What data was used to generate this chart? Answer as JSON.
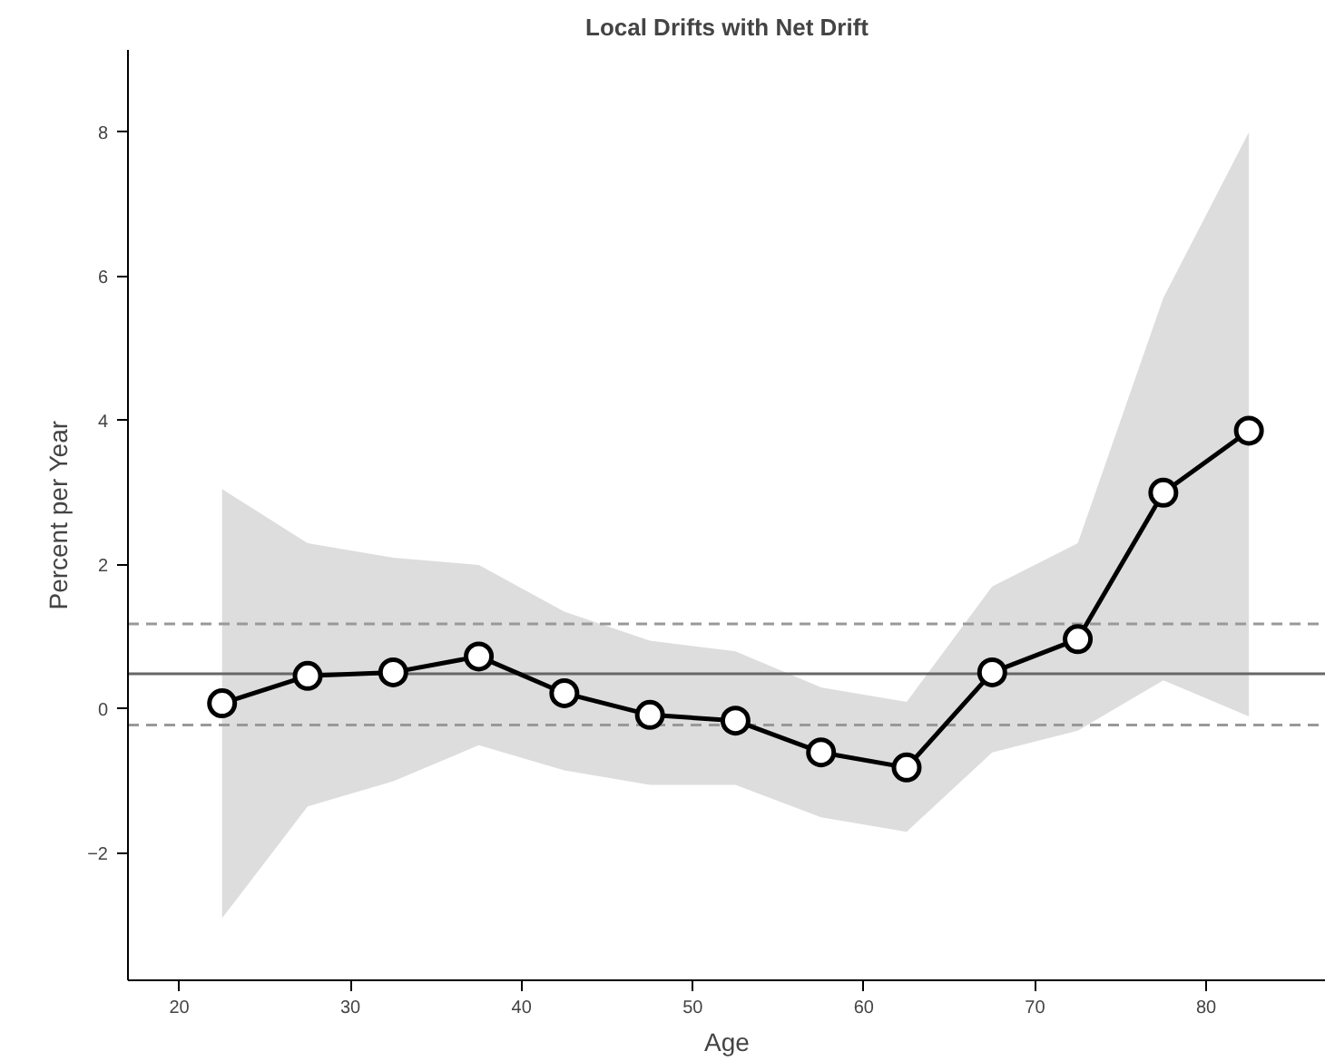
{
  "chart_data": {
    "type": "line",
    "title": "Local Drifts with Net Drift",
    "xlabel": "Age",
    "ylabel": "Percent per Year",
    "x": [
      22.5,
      27.5,
      32.5,
      37.5,
      42.5,
      47.5,
      52.5,
      57.5,
      62.5,
      67.5,
      72.5,
      77.5,
      82.5
    ],
    "series": [
      {
        "color": "#000000",
        "values": [
          0.08,
          0.46,
          0.51,
          0.73,
          0.22,
          -0.08,
          -0.16,
          -0.6,
          -0.81,
          0.51,
          0.97,
          3.0,
          3.86
        ],
        "lower": [
          -2.9,
          -1.35,
          -1.0,
          -0.5,
          -0.85,
          -1.05,
          -1.05,
          -1.5,
          -1.7,
          -0.6,
          -0.3,
          0.4,
          -0.1
        ],
        "upper": [
          3.05,
          2.3,
          2.1,
          2.0,
          1.35,
          0.95,
          0.8,
          0.3,
          0.1,
          1.7,
          2.3,
          5.7,
          8.0
        ]
      }
    ],
    "ref_lines": [
      {
        "axis": "y",
        "value": 0.49,
        "color": "#666666",
        "line_style": "solid"
      },
      {
        "axis": "y",
        "value": 1.18,
        "color": "#999999",
        "line_style": "dashed"
      },
      {
        "axis": "y",
        "value": -0.22,
        "color": "#999999",
        "line_style": "dashed"
      }
    ],
    "xlim": [
      17,
      87
    ],
    "ylim": [
      -3.76,
      9.14
    ],
    "xticks": [
      20,
      30,
      40,
      50,
      60,
      70,
      80
    ],
    "yticks": [
      -2,
      0,
      2,
      4,
      6,
      8
    ],
    "grid": false,
    "marker": "circle",
    "line_style": "solid"
  }
}
